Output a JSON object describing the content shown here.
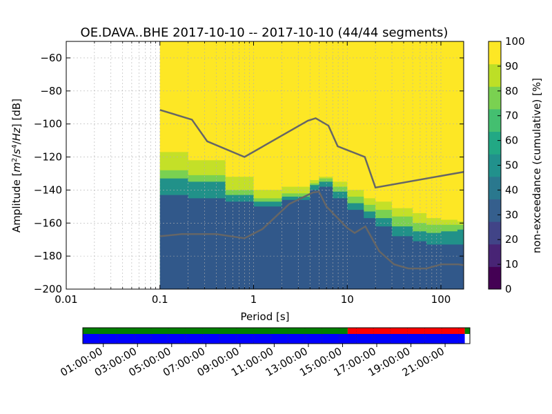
{
  "chart_data": {
    "type": "heatmap",
    "title": "OE.DAVA..BHE   2017-10-10 -- 2017-10-10  (44/44 segments)",
    "xlabel": "Period [s]",
    "ylabel_prefix": "Amplitude [",
    "ylabel_units": [
      "m",
      "2",
      "/",
      "s",
      "4",
      "/",
      "Hz"
    ],
    "ylabel_suffix": "] [dB]",
    "x_scale": "log",
    "xlim": [
      0.01,
      175
    ],
    "ylim": [
      -200,
      -50
    ],
    "xticks": [
      0.01,
      0.1,
      1,
      10,
      100
    ],
    "xtick_labels": [
      "0.01",
      "0.1",
      "1",
      "10",
      "100"
    ],
    "yticks": [
      -200,
      -180,
      -160,
      -140,
      -120,
      -100,
      -80,
      -60
    ],
    "ytick_labels": [
      "−200",
      "−180",
      "−160",
      "−140",
      "−120",
      "−100",
      "−80",
      "−60"
    ],
    "grid": true,
    "data_period_min": 0.1,
    "colorbar": {
      "label": "non-exceedance (cumulative) [%]",
      "range": [
        0,
        100
      ],
      "ticks": [
        0,
        10,
        20,
        30,
        40,
        50,
        60,
        70,
        80,
        90,
        100
      ],
      "colormap": [
        "#440154",
        "#482475",
        "#414487",
        "#355f8d",
        "#2a788e",
        "#21918c",
        "#22a884",
        "#44bf70",
        "#7ad151",
        "#bddf26",
        "#fde725"
      ]
    },
    "percentile_bands": [
      {
        "level": 20,
        "color": "#31588a",
        "periods": [
          0.1,
          0.2,
          0.5,
          1,
          2,
          4,
          5,
          7,
          10,
          15,
          20,
          30,
          50,
          70,
          100,
          150,
          175
        ],
        "upper_db": [
          -143,
          -145,
          -147,
          -150,
          -146,
          -140,
          -138,
          -145,
          -152,
          -157,
          -162,
          -168,
          -171,
          -173,
          -173,
          -173,
          -173
        ]
      },
      {
        "level": 50,
        "color": "#219189",
        "periods": [
          0.1,
          0.2,
          0.5,
          1,
          2,
          4,
          5,
          7,
          10,
          15,
          20,
          30,
          50,
          70,
          100,
          150,
          175
        ],
        "upper_db": [
          -133,
          -135,
          -143,
          -147,
          -144,
          -137,
          -135,
          -141,
          -148,
          -153,
          -157,
          -162,
          -165,
          -166,
          -165,
          -164,
          -164
        ]
      },
      {
        "level": 80,
        "color": "#7ad151",
        "periods": [
          0.1,
          0.2,
          0.5,
          1,
          2,
          4,
          5,
          7,
          10,
          15,
          20,
          30,
          50,
          70,
          100,
          150,
          175
        ],
        "upper_db": [
          -128,
          -131,
          -140,
          -145,
          -142,
          -136,
          -133,
          -138,
          -144,
          -149,
          -152,
          -156,
          -160,
          -161,
          -161,
          -161,
          -161
        ]
      },
      {
        "level": 95,
        "color": "#c4e028",
        "periods": [
          0.1,
          0.2,
          0.5,
          1,
          2,
          4,
          5,
          7,
          10,
          15,
          20,
          30,
          50,
          70,
          100,
          150,
          175
        ],
        "upper_db": [
          -117,
          -122,
          -132,
          -140,
          -138,
          -134,
          -132,
          -135,
          -140,
          -145,
          -147,
          -151,
          -154,
          -157,
          -158,
          -159,
          -159
        ]
      }
    ],
    "series": [
      {
        "name": "",
        "style": "model",
        "color": "#666666",
        "x": [
          0.1,
          0.22,
          0.32,
          0.8,
          3.8,
          4.6,
          6.3,
          7.9,
          15.4,
          20,
          176
        ],
        "y": [
          -91.5,
          -97.4,
          -110.5,
          -120,
          -98,
          -96.5,
          -101,
          -113.5,
          -120,
          -138.5,
          -129
        ]
      },
      {
        "name": "",
        "style": "model",
        "color": "#666666",
        "x": [
          0.1,
          0.17,
          0.4,
          0.8,
          1.24,
          2.4,
          4.3,
          5,
          6,
          10,
          12,
          15.6,
          21.9,
          31.6,
          45,
          70,
          101,
          154,
          176
        ],
        "y": [
          -168,
          -166.7,
          -166.7,
          -169.2,
          -163.7,
          -148.5,
          -141.5,
          -141,
          -150,
          -163,
          -166,
          -162,
          -177,
          -185,
          -187.5,
          -187.5,
          -185,
          -185,
          -185.5
        ]
      }
    ]
  },
  "time_axis": {
    "labels": [
      "01:00:00",
      "03:00:00",
      "05:00:00",
      "07:00:00",
      "09:00:00",
      "11:00:00",
      "13:00:00",
      "15:00:00",
      "17:00:00",
      "19:00:00",
      "21:00:00"
    ],
    "label_hours": [
      1,
      3,
      5,
      7,
      9,
      11,
      13,
      15,
      17,
      19,
      21
    ],
    "range_hours": [
      -0.2,
      22.45
    ],
    "upper_bar": [
      {
        "start": -0.2,
        "end": 15.3,
        "color": "#008000"
      },
      {
        "start": 15.3,
        "end": 22.15,
        "color": "#ff0000"
      },
      {
        "start": 22.15,
        "end": 22.45,
        "color": "#008000"
      }
    ],
    "lower_bar": [
      {
        "start": -0.2,
        "end": 22.15,
        "color": "#0000ff"
      }
    ],
    "segment_ticks_hours": [
      0.8,
      1.8,
      2.8,
      3.8,
      4.8,
      5.8,
      6.8,
      7.8,
      8.8,
      9.8,
      10.8,
      11.8,
      12.8,
      13.8,
      14.8,
      15.8,
      16.8,
      17.8,
      18.8,
      19.8,
      20.8,
      21.8
    ]
  }
}
